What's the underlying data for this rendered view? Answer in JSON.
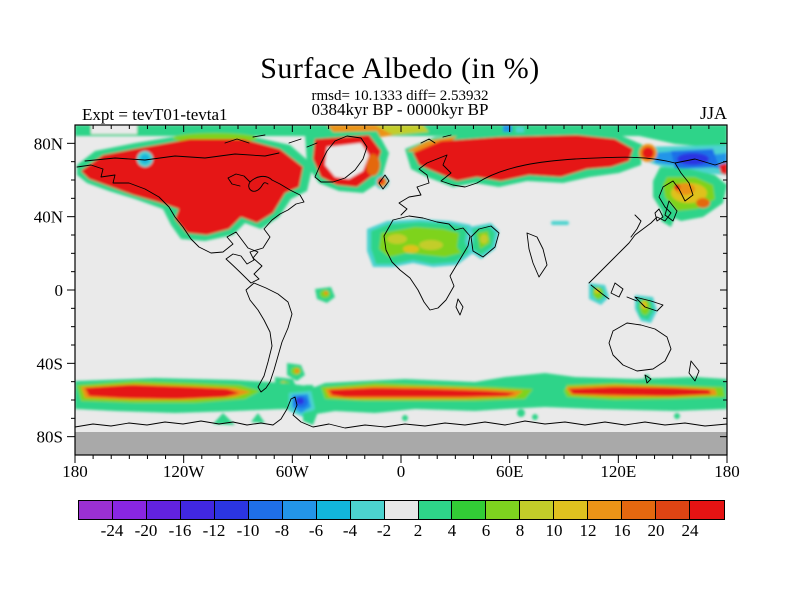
{
  "header": {
    "title": "Surface Albedo (in %)",
    "stats_line": "rmsd= 10.1333 diff= 2.53932",
    "period_line": "0384kyr BP - 0000kyr BP",
    "experiment_label": "Expt = tevT01-tevta1",
    "season_label": "JJA"
  },
  "map": {
    "background_color": "#eaeaea",
    "nodata_color": "#a9a9a9",
    "frame_color": "#000000",
    "x_ticks": [
      {
        "label": "180",
        "lon": -180
      },
      {
        "label": "120W",
        "lon": -120
      },
      {
        "label": "60W",
        "lon": -60
      },
      {
        "label": "0",
        "lon": 0
      },
      {
        "label": "60E",
        "lon": 60
      },
      {
        "label": "120E",
        "lon": 120
      },
      {
        "label": "180",
        "lon": 180
      }
    ],
    "y_ticks": [
      {
        "label": "80N",
        "lat": 80
      },
      {
        "label": "40N",
        "lat": 40
      },
      {
        "label": "0",
        "lat": 0
      },
      {
        "label": "40S",
        "lat": -40
      },
      {
        "label": "80S",
        "lat": -80
      }
    ],
    "minor_tick_step_deg": 10
  },
  "colorbar": {
    "boundary_labels": [
      "-24",
      "-20",
      "-16",
      "-12",
      "-10",
      "-8",
      "-6",
      "-4",
      "-2",
      "2",
      "4",
      "6",
      "8",
      "10",
      "12",
      "16",
      "20",
      "24"
    ],
    "segment_colors": [
      "#9b30d2",
      "#8926e3",
      "#6222e0",
      "#4127e2",
      "#2b35e2",
      "#1f6fe8",
      "#2395e8",
      "#12b6dc",
      "#4cd3cf",
      "#e8e8e8",
      "#2ed489",
      "#32cd36",
      "#7ed31f",
      "#c3cd29",
      "#dfc11f",
      "#eb9317",
      "#e4680f",
      "#de4413",
      "#e51313"
    ]
  },
  "chart_data": {
    "type": "heatmap",
    "subtype": "filled-contour world map (difference field)",
    "title": "Surface Albedo (in %)",
    "stats": {
      "rmsd": 10.1333,
      "diff": 2.53932
    },
    "difference": "0384kyr BP - 0000kyr BP",
    "season": "JJA",
    "experiment": "tevT01-tevta1",
    "x_axis": {
      "label": "longitude",
      "range_deg": [
        -180,
        180
      ],
      "tick_labels": [
        "180",
        "120W",
        "60W",
        "0",
        "60E",
        "120E",
        "180"
      ],
      "minor_tick_step": 10
    },
    "y_axis": {
      "label": "latitude",
      "range_deg": [
        -90,
        90
      ],
      "tick_labels": [
        "80N",
        "40N",
        "0",
        "40S",
        "80S"
      ],
      "minor_tick_step": 10
    },
    "colorbar_levels": [
      -24,
      -20,
      -16,
      -12,
      -10,
      -8,
      -6,
      -4,
      -2,
      2,
      4,
      6,
      8,
      10,
      12,
      16,
      20,
      24
    ],
    "legend_position": "bottom",
    "grid": false,
    "regions": [
      {
        "region": "Arctic North America (Alaska-Canada-Labrador, 55-80N)",
        "anomaly_pct": "> +24 (red)"
      },
      {
        "region": "Northern Eurasia (Scandinavia-central/east Siberia, 60-78N)",
        "anomaly_pct": "> +24 (red)"
      },
      {
        "region": "Greenland interior",
        "anomaly_pct": "near 0 (within ±2)"
      },
      {
        "region": "Greenland margins and Iceland",
        "anomaly_pct": "+12 to > +24"
      },
      {
        "region": "Arctic Ocean fringe 85-90N",
        "anomaly_pct": "+2 to +12 (green band, orange near Greenland sector)"
      },
      {
        "region": "NE Siberia / Chukchi sector (70-75N, 150E-180)",
        "anomaly_pct": "-8 to -16 (blue), small red spot at 150E"
      },
      {
        "region": "Sea of Okhotsk / Kamchatka / Korea-Japan (45-62N)",
        "anomaly_pct": "+2 to +16 (green-yellow-orange)"
      },
      {
        "region": "Sahara and Arabia (12-34N)",
        "anomaly_pct": "+2 to +10 (green with yellow interior)"
      },
      {
        "region": "Sumatra-Malaya and New Guinea-Cape York",
        "anomaly_pct": "+2 to +8"
      },
      {
        "region": "Amazon mouth (N Brazil)",
        "anomaly_pct": "+2 to +8"
      },
      {
        "region": "Patagonia / Tierra del Fuego",
        "anomaly_pct": "+2 to +12"
      },
      {
        "region": "Southern Ocean belt (52-62S, circumpolar)",
        "anomaly_pct": "green edges with broad red cores > +24"
      },
      {
        "region": "Antarctic Peninsula / ~60W at 60-65S",
        "anomaly_pct": "-6 to -12 (blue)"
      },
      {
        "region": "Antarctica south of ~78S",
        "anomaly_pct": "no data (gray)"
      },
      {
        "region": "Oceans and remaining mid/low-latitude land",
        "anomaly_pct": "near 0 (within ±2, light gray)"
      }
    ]
  }
}
